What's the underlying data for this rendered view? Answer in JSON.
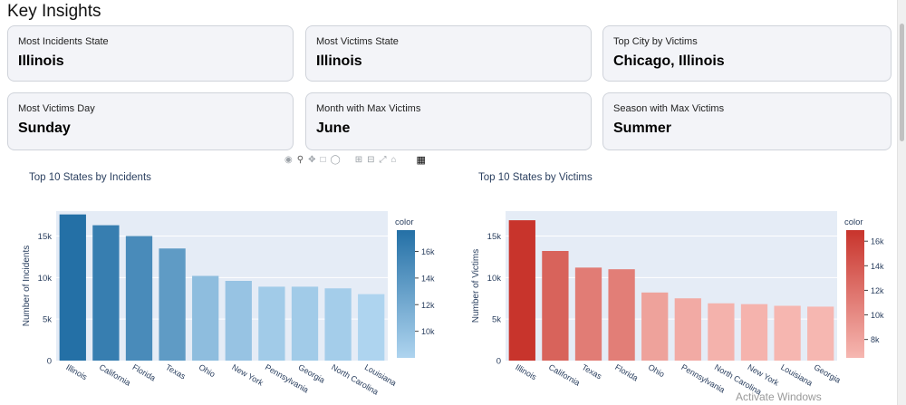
{
  "page": {
    "title": "Key Insights",
    "watermark": "Activate Windows"
  },
  "cards": [
    {
      "label": "Most Incidents State",
      "value": "Illinois"
    },
    {
      "label": "Most Victims State",
      "value": "Illinois"
    },
    {
      "label": "Top City by Victims",
      "value": "Chicago, Illinois"
    },
    {
      "label": "Most Victims Day",
      "value": "Sunday"
    },
    {
      "label": "Month with Max Victims",
      "value": "June"
    },
    {
      "label": "Season with Max Victims",
      "value": "Summer"
    }
  ],
  "modebar": {
    "icons": [
      "camera-icon",
      "zoom-icon",
      "pan-icon",
      "box-select-icon",
      "lasso-icon",
      "zoom-in-icon",
      "zoom-out-icon",
      "autoscale-icon",
      "home-icon",
      "plotly-logo-icon"
    ]
  },
  "chart_data": [
    {
      "type": "bar",
      "title": "Top 10 States by Incidents",
      "ylabel": "Number of Incidents",
      "categories": [
        "Illinois",
        "California",
        "Florida",
        "Texas",
        "Ohio",
        "New York",
        "Pennsylvania",
        "Georgia",
        "North Carolina",
        "Louisiana"
      ],
      "values": [
        17600,
        16300,
        15000,
        13500,
        10200,
        9600,
        8900,
        8900,
        8700,
        8000
      ],
      "ylim": [
        0,
        18000
      ],
      "yticks": [
        0,
        5000,
        10000,
        15000
      ],
      "ytick_labels": [
        "0",
        "5k",
        "10k",
        "15k"
      ],
      "colorbar": {
        "title": "color",
        "range": [
          8000,
          17600
        ],
        "ticks": [
          10000,
          12000,
          14000,
          16000
        ],
        "tick_labels": [
          "10k",
          "12k",
          "14k",
          "16k"
        ]
      },
      "colors": {
        "low": "#aed4ef",
        "high": "#2470a6"
      },
      "grid": true,
      "legend": "colorbar right"
    },
    {
      "type": "bar",
      "title": "Top 10 States by Victims",
      "ylabel": "Number of Victims",
      "categories": [
        "Illinois",
        "California",
        "Texas",
        "Florida",
        "Ohio",
        "Pennsylvania",
        "North Carolina",
        "New York",
        "Louisiana",
        "Georgia"
      ],
      "values": [
        16900,
        13200,
        11200,
        11000,
        8200,
        7500,
        6900,
        6800,
        6600,
        6500
      ],
      "ylim": [
        0,
        18000
      ],
      "yticks": [
        0,
        5000,
        10000,
        15000
      ],
      "ytick_labels": [
        "0",
        "5k",
        "10k",
        "15k"
      ],
      "colorbar": {
        "title": "color",
        "range": [
          6500,
          16900
        ],
        "ticks": [
          8000,
          10000,
          12000,
          14000,
          16000
        ],
        "tick_labels": [
          "8k",
          "10k",
          "12k",
          "14k",
          "16k"
        ]
      },
      "colors": {
        "low": "#f6b7b1",
        "high": "#c8342c"
      },
      "grid": true,
      "legend": "colorbar right"
    }
  ]
}
